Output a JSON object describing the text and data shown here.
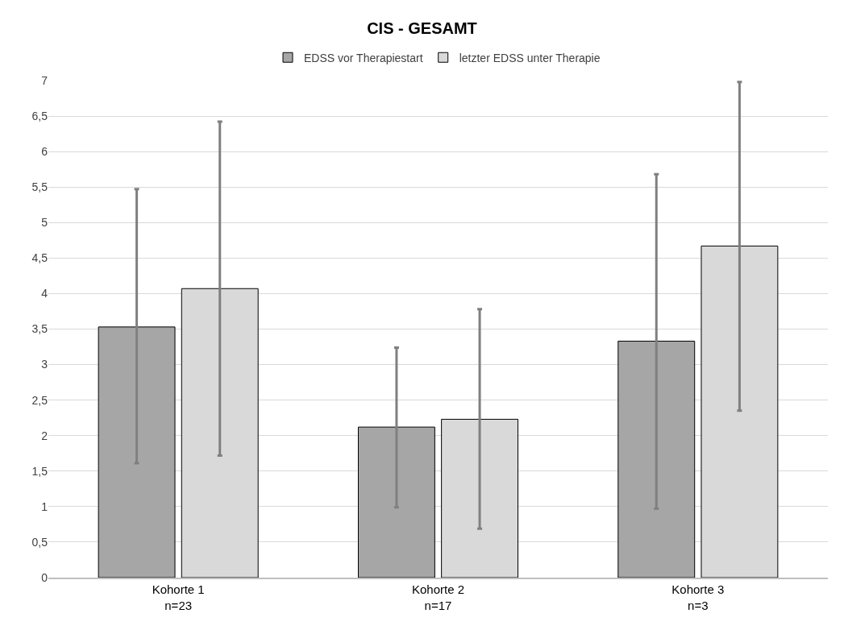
{
  "chart_data": {
    "type": "bar",
    "title": "CIS - GESAMT",
    "categories": [
      "Kohorte 1\nn=23",
      "Kohorte 2\nn=17",
      "Kohorte 3\nn=3"
    ],
    "series": [
      {
        "name": "EDSS vor Therapiestart",
        "color": "#a6a6a6",
        "values": [
          3.53,
          2.12,
          3.33
        ],
        "errors": [
          [
            1.61,
            5.47
          ],
          [
            0.99,
            3.24
          ],
          [
            0.97,
            5.68
          ]
        ]
      },
      {
        "name": "letzter EDSS unter Therapie",
        "color": "#d9d9d9",
        "values": [
          4.07,
          2.23,
          4.67
        ],
        "errors": [
          [
            1.72,
            6.42
          ],
          [
            0.69,
            3.78
          ],
          [
            2.35,
            6.98
          ]
        ]
      }
    ],
    "ylim": [
      0,
      7
    ],
    "yticks": [
      0,
      {
        "value": 0.5,
        "label": "0,5"
      },
      1,
      {
        "value": 1.5,
        "label": "1,5"
      },
      2,
      {
        "value": 2.5,
        "label": "2,5"
      },
      3,
      {
        "value": 3.5,
        "label": "3,5"
      },
      4,
      {
        "value": 4.5,
        "label": "4,5"
      },
      5,
      {
        "value": 5.5,
        "label": "5,5"
      },
      6,
      {
        "value": 6.5,
        "label": "6,5"
      },
      7
    ],
    "grid": "y",
    "legend": "top"
  }
}
